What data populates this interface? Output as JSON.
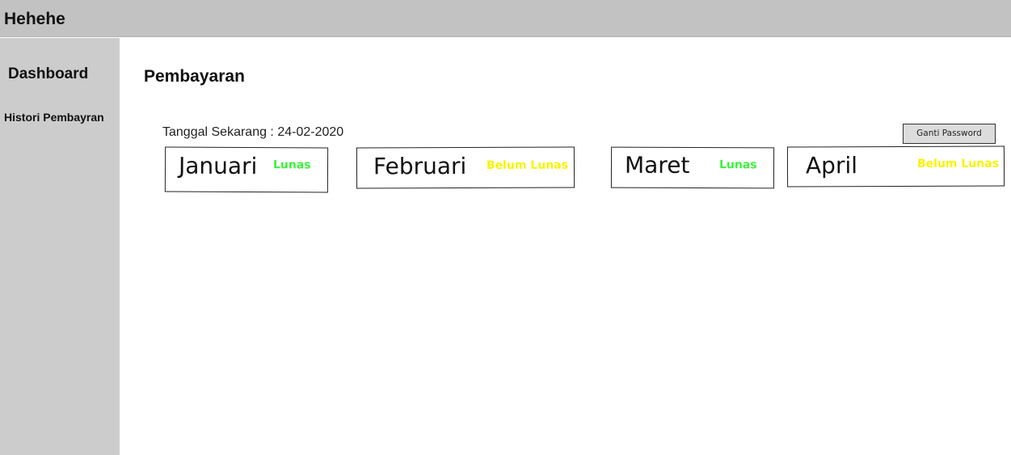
{
  "header": {
    "app_title": "Hehehe"
  },
  "sidebar": {
    "items": [
      {
        "label": "Dashboard"
      },
      {
        "label": "Histori Pembayran"
      }
    ]
  },
  "main": {
    "title": "Pembayaran",
    "date_line": "Tanggal Sekarang : 24-02-2020",
    "change_password_label": "Ganti Password",
    "months": [
      {
        "month": "Januari",
        "status": "Lunas"
      },
      {
        "month": "Februari",
        "status": "Belum Lunas"
      },
      {
        "month": "Maret",
        "status": "Lunas"
      },
      {
        "month": "April",
        "status": "Belum Lunas"
      }
    ]
  },
  "colors": {
    "topbar": "#c2c2c2",
    "sidebar": "#cccccc",
    "status_lunas": "#3ef03e",
    "status_belum_lunas": "#f5f500"
  }
}
